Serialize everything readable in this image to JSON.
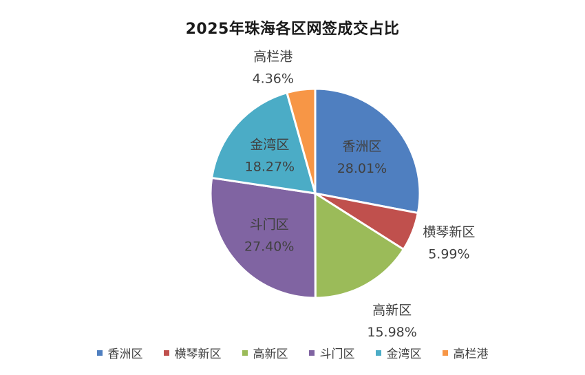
{
  "chart_data": {
    "type": "pie",
    "title": "2025年珠海各区网签成交占比",
    "categories": [
      "香洲区",
      "横琴新区",
      "高新区",
      "斗门区",
      "金湾区",
      "高栏港"
    ],
    "values": [
      28.01,
      5.99,
      15.98,
      27.4,
      18.27,
      4.36
    ],
    "value_labels": [
      "28.01%",
      "5.99%",
      "15.98%",
      "27.40%",
      "18.27%",
      "4.36%"
    ],
    "colors": [
      "#4f7fc0",
      "#c0504d",
      "#9bbb59",
      "#8064a2",
      "#4bacc6",
      "#f79646"
    ],
    "legend": "bottom",
    "start_angle_deg": 0,
    "direction": "clockwise"
  }
}
